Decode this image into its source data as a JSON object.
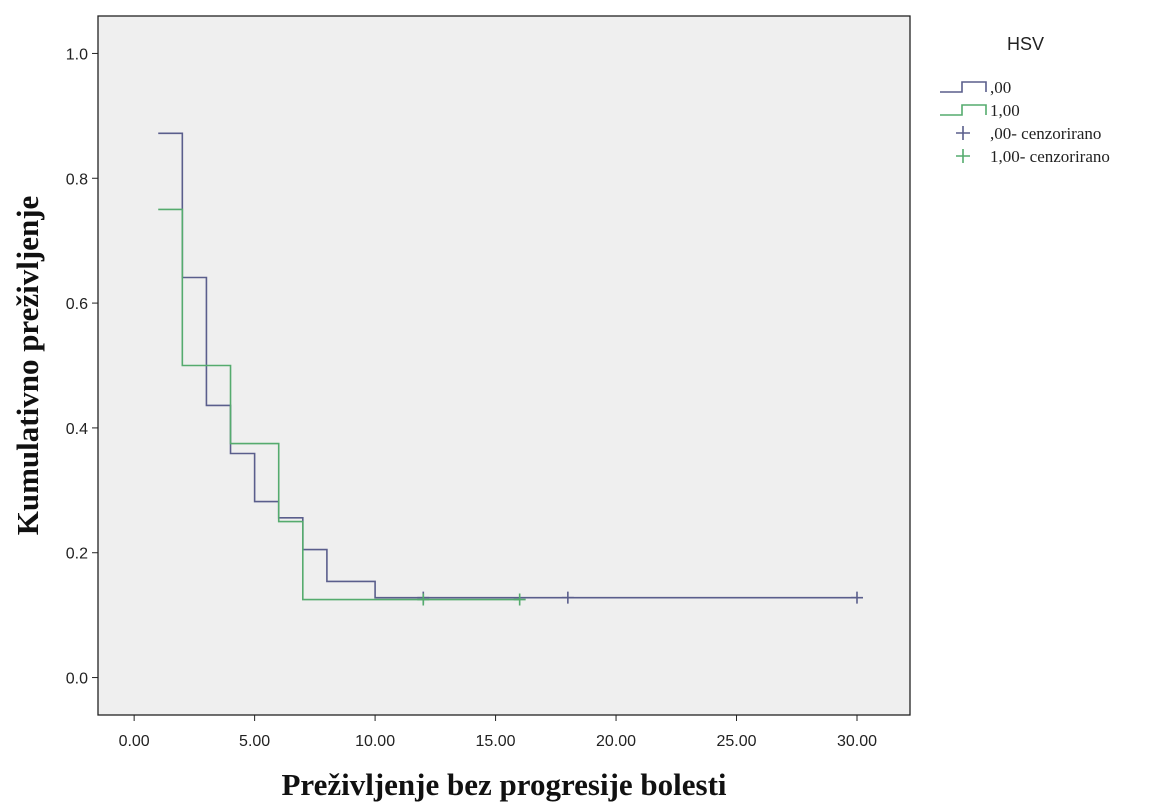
{
  "chart_data": {
    "type": "line",
    "step": true,
    "xlabel": "Preživljenje bez progresije bolesti",
    "ylabel": "Kumulativno preživljenje",
    "xlim": [
      -1.5,
      32.2
    ],
    "ylim": [
      -0.06,
      1.06
    ],
    "xticks": [
      0,
      5,
      10,
      15,
      20,
      25,
      30
    ],
    "xtick_labels": [
      "0.00",
      "5.00",
      "10.00",
      "15.00",
      "20.00",
      "25.00",
      "30.00"
    ],
    "yticks": [
      0,
      0.2,
      0.4,
      0.6,
      0.8,
      1.0
    ],
    "ytick_labels": [
      "0.0",
      "0.2",
      "0.4",
      "0.6",
      "0.8",
      "1.0"
    ],
    "grid": false,
    "background": "#efefef",
    "legend": {
      "title": "HSV",
      "placement": "right",
      "items": [
        {
          "label": ",00",
          "kind": "line",
          "color": "#5a5e8c"
        },
        {
          "label": "1,00",
          "kind": "line",
          "color": "#55ab6e"
        },
        {
          "label": ",00- cenzorirano",
          "kind": "marker",
          "color": "#5a5e8c"
        },
        {
          "label": "1,00- cenzorirano",
          "kind": "marker",
          "color": "#55ab6e"
        }
      ]
    },
    "series": [
      {
        "name": ",00",
        "color": "#5a5e8c",
        "points": [
          [
            1,
            0.872
          ],
          [
            2,
            0.641
          ],
          [
            3,
            0.436
          ],
          [
            4,
            0.359
          ],
          [
            5,
            0.282
          ],
          [
            6,
            0.256
          ],
          [
            7,
            0.205
          ],
          [
            8,
            0.154
          ],
          [
            10,
            0.128
          ],
          [
            30,
            0.128
          ]
        ],
        "censored": [
          [
            12,
            0.128
          ],
          [
            18,
            0.128
          ],
          [
            30,
            0.128
          ]
        ]
      },
      {
        "name": "1,00",
        "color": "#55ab6e",
        "points": [
          [
            1,
            0.75
          ],
          [
            2,
            0.5
          ],
          [
            4,
            0.375
          ],
          [
            6,
            0.25
          ],
          [
            7,
            0.125
          ],
          [
            16,
            0.125
          ]
        ],
        "censored": [
          [
            12,
            0.125
          ],
          [
            16,
            0.125
          ]
        ]
      }
    ]
  }
}
